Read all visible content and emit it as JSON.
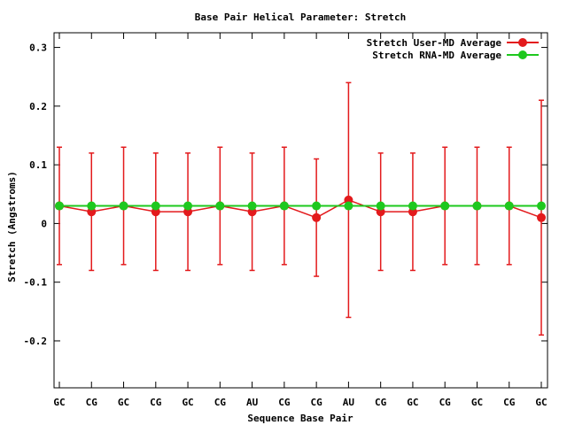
{
  "chart_data": {
    "type": "line",
    "title": "Base Pair Helical Parameter: Stretch",
    "xlabel": "Sequence Base Pair",
    "ylabel": "Stretch (Angstroms)",
    "ylim": [
      -0.28,
      0.325
    ],
    "yticks": [
      -0.2,
      -0.1,
      0,
      0.1,
      0.2,
      0.3
    ],
    "ytick_labels": [
      "-0.2",
      "-0.1",
      "0",
      "0.1",
      "0.2",
      "0.3"
    ],
    "categories": [
      "GC",
      "CG",
      "GC",
      "CG",
      "GC",
      "CG",
      "AU",
      "CG",
      "CG",
      "AU",
      "CG",
      "GC",
      "CG",
      "GC",
      "CG",
      "GC"
    ],
    "legend_position": "top-right",
    "series": [
      {
        "name": "Stretch User-MD Average",
        "color": "#e31a1c",
        "values": [
          0.03,
          0.02,
          0.03,
          0.02,
          0.02,
          0.03,
          0.02,
          0.03,
          0.01,
          0.04,
          0.02,
          0.02,
          0.03,
          0.03,
          0.03,
          0.01
        ],
        "error_low": [
          -0.07,
          -0.08,
          -0.07,
          -0.08,
          -0.08,
          -0.07,
          -0.08,
          -0.07,
          -0.09,
          -0.16,
          -0.08,
          -0.08,
          -0.07,
          -0.07,
          -0.07,
          -0.19
        ],
        "error_high": [
          0.13,
          0.12,
          0.13,
          0.12,
          0.12,
          0.13,
          0.12,
          0.13,
          0.11,
          0.24,
          0.12,
          0.12,
          0.13,
          0.13,
          0.13,
          0.21
        ]
      },
      {
        "name": "Stretch RNA-MD Average",
        "color": "#1ec81e",
        "values": [
          0.03,
          0.03,
          0.03,
          0.03,
          0.03,
          0.03,
          0.03,
          0.03,
          0.03,
          0.03,
          0.03,
          0.03,
          0.03,
          0.03,
          0.03,
          0.03
        ]
      }
    ]
  }
}
